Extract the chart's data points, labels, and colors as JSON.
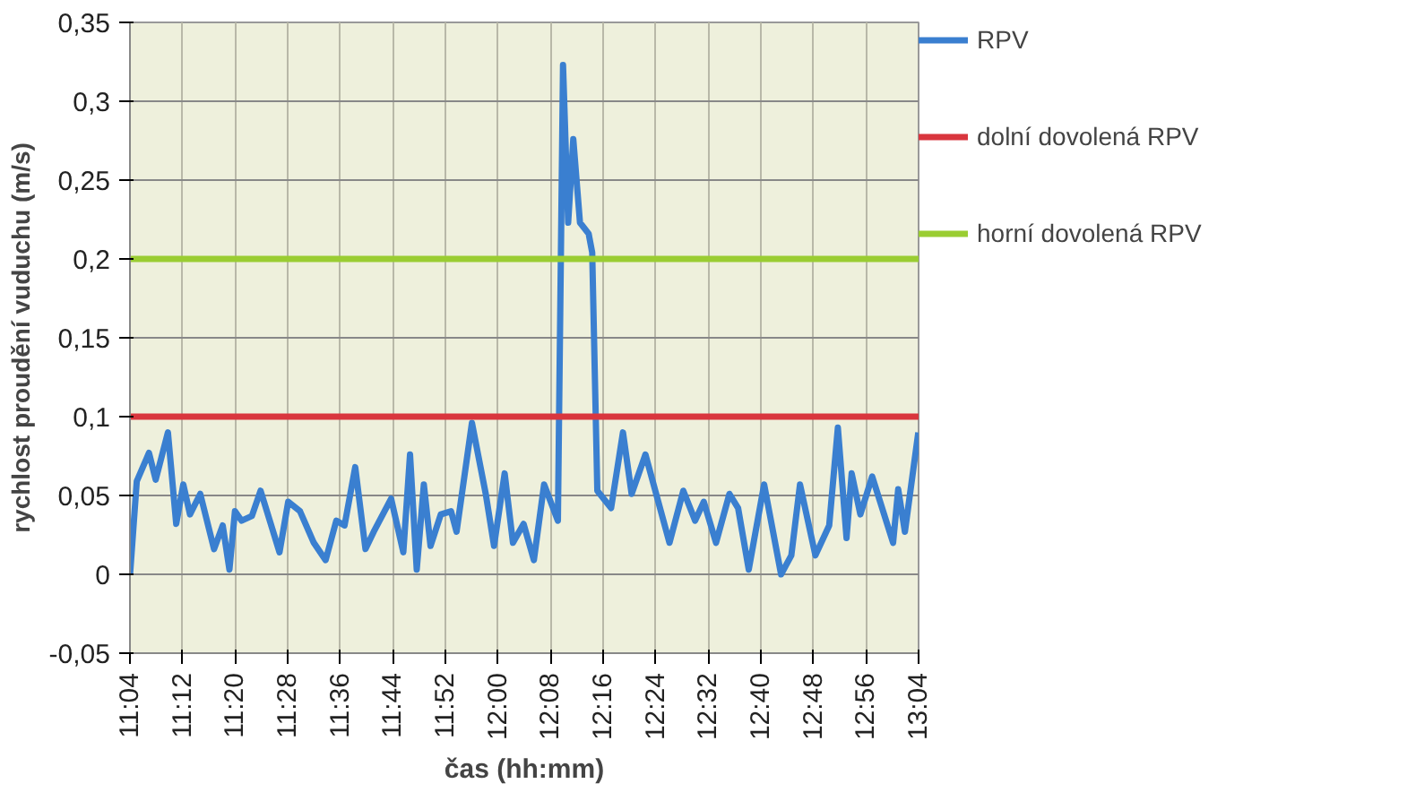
{
  "chart_data": {
    "type": "line",
    "xlabel": "čas (hh:mm)",
    "ylabel": "rychlost proudění vuduchu (m/s)",
    "xlim": [
      11.0667,
      13.0667
    ],
    "xticks": [
      {
        "value": 11.0667,
        "label": "11:04"
      },
      {
        "value": 11.2,
        "label": "11:12"
      },
      {
        "value": 11.3333,
        "label": "11:20"
      },
      {
        "value": 11.4667,
        "label": "11:28"
      },
      {
        "value": 11.6,
        "label": "11:36"
      },
      {
        "value": 11.7333,
        "label": "11:44"
      },
      {
        "value": 11.8667,
        "label": "11:52"
      },
      {
        "value": 12.0,
        "label": "12:00"
      },
      {
        "value": 12.1333,
        "label": "12:08"
      },
      {
        "value": 12.2667,
        "label": "12:16"
      },
      {
        "value": 12.4,
        "label": "12:24"
      },
      {
        "value": 12.5333,
        "label": "12:32"
      },
      {
        "value": 12.6667,
        "label": "12:40"
      },
      {
        "value": 12.8,
        "label": "12:48"
      },
      {
        "value": 12.9333,
        "label": "12:56"
      },
      {
        "value": 13.0667,
        "label": "13:04"
      }
    ],
    "ylim": [
      -0.05,
      0.35
    ],
    "yticks": [
      {
        "value": -0.05,
        "label": "-0,05"
      },
      {
        "value": 0,
        "label": "0"
      },
      {
        "value": 0.05,
        "label": "0,05"
      },
      {
        "value": 0.1,
        "label": "0,1"
      },
      {
        "value": 0.15,
        "label": "0,15"
      },
      {
        "value": 0.2,
        "label": "0,2"
      },
      {
        "value": 0.25,
        "label": "0,25"
      },
      {
        "value": 0.3,
        "label": "0,3"
      },
      {
        "value": 0.35,
        "label": "0,35"
      }
    ],
    "grid": true,
    "legend": "right",
    "marker": "none",
    "line_style": "solid",
    "series": [
      {
        "name": "RPV",
        "color": "#3a7fd0",
        "x": [
          11.067,
          11.084,
          11.115,
          11.132,
          11.163,
          11.184,
          11.202,
          11.219,
          11.245,
          11.28,
          11.302,
          11.319,
          11.333,
          11.35,
          11.376,
          11.398,
          11.446,
          11.468,
          11.498,
          11.533,
          11.563,
          11.59,
          11.611,
          11.638,
          11.664,
          11.685,
          11.729,
          11.76,
          11.777,
          11.794,
          11.812,
          11.829,
          11.855,
          11.881,
          11.895,
          11.934,
          11.969,
          11.99,
          12.017,
          12.038,
          12.065,
          12.091,
          12.117,
          12.152,
          12.165,
          12.178,
          12.191,
          12.208,
          12.23,
          12.239,
          12.252,
          12.287,
          12.317,
          12.339,
          12.374,
          12.435,
          12.47,
          12.5,
          12.522,
          12.553,
          12.587,
          12.609,
          12.636,
          12.675,
          12.718,
          12.744,
          12.766,
          12.805,
          12.84,
          12.862,
          12.884,
          12.897,
          12.919,
          12.949,
          13.002,
          13.015,
          13.032,
          13.066
        ],
        "values": [
          0,
          0.059,
          0.077,
          0.06,
          0.09,
          0.032,
          0.057,
          0.038,
          0.051,
          0.016,
          0.031,
          0.003,
          0.04,
          0.034,
          0.037,
          0.053,
          0.014,
          0.046,
          0.04,
          0.02,
          0.009,
          0.034,
          0.031,
          0.068,
          0.016,
          0.027,
          0.048,
          0.014,
          0.076,
          0.003,
          0.057,
          0.018,
          0.038,
          0.04,
          0.027,
          0.096,
          0.051,
          0.018,
          0.064,
          0.02,
          0.032,
          0.009,
          0.057,
          0.034,
          0.323,
          0.223,
          0.276,
          0.223,
          0.216,
          0.204,
          0.053,
          0.042,
          0.09,
          0.051,
          0.076,
          0.02,
          0.053,
          0.034,
          0.046,
          0.02,
          0.051,
          0.042,
          0.003,
          0.057,
          0,
          0.012,
          0.057,
          0.012,
          0.031,
          0.093,
          0.023,
          0.064,
          0.038,
          0.062,
          0.02,
          0.054,
          0.027,
          0.09
        ]
      }
    ],
    "ref_lines": [
      {
        "axis": "y",
        "value": 0.1,
        "label": "dolní dovolená RPV",
        "color": "#d9363e"
      },
      {
        "axis": "y",
        "value": 0.2,
        "label": "horní dovolená RPV",
        "color": "#9acd32"
      }
    ]
  }
}
